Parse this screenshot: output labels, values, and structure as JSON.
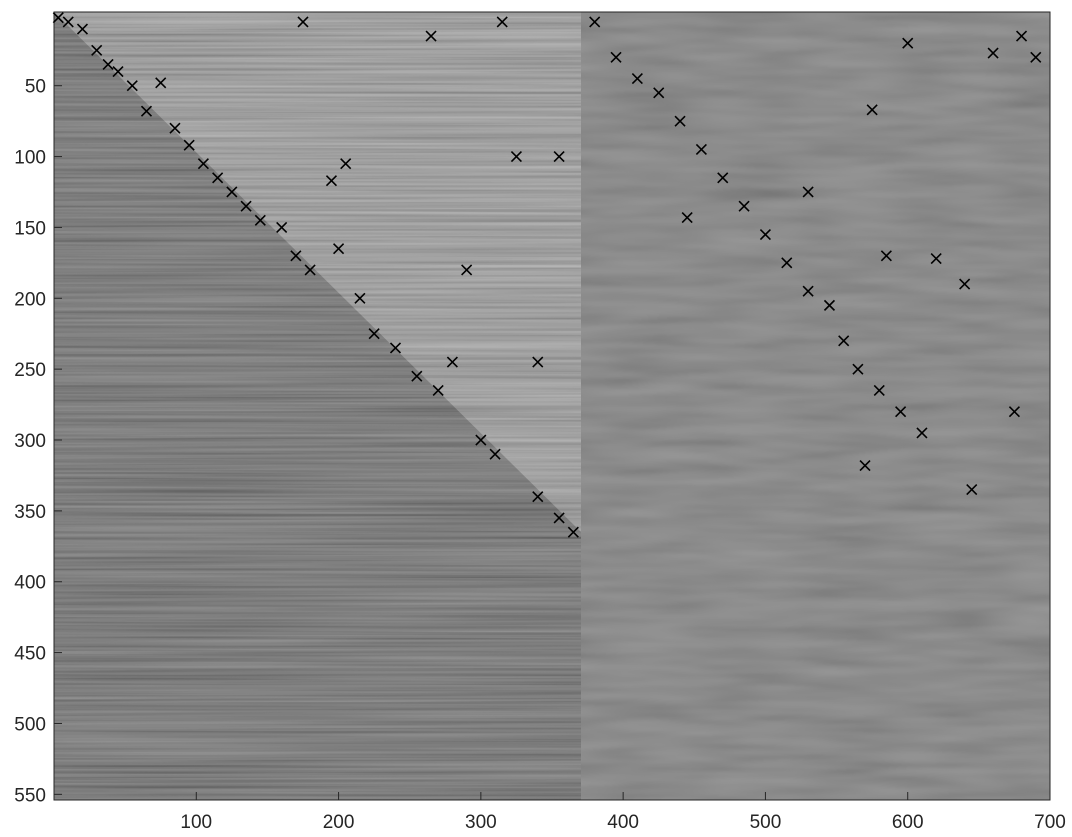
{
  "chart_data": {
    "type": "scatter",
    "xlim": [
      0,
      700
    ],
    "ylim": [
      -2,
      554
    ],
    "y_reversed": true,
    "xticks": [
      100,
      200,
      300,
      400,
      500,
      600,
      700
    ],
    "yticks": [
      50,
      100,
      150,
      200,
      250,
      300,
      350,
      400,
      450,
      500,
      550
    ],
    "series": [
      {
        "color": "#000000",
        "marker": "x",
        "x": [
          3,
          10,
          20,
          30,
          38,
          45,
          55,
          65,
          75,
          85,
          95,
          105,
          115,
          125,
          135,
          145,
          160,
          170,
          180,
          200,
          215,
          225,
          240,
          255,
          270,
          280,
          290,
          300,
          310,
          325,
          340,
          355,
          365,
          340,
          355,
          315,
          195,
          175,
          205,
          265,
          380,
          395,
          410,
          425,
          440,
          455,
          470,
          485,
          500,
          515,
          530,
          545,
          555,
          565,
          580,
          595,
          610,
          660,
          690,
          675,
          645,
          570,
          445,
          640,
          620,
          585,
          575,
          530,
          600,
          680
        ],
        "y": [
          2,
          5,
          10,
          25,
          35,
          40,
          50,
          68,
          48,
          80,
          92,
          105,
          115,
          125,
          135,
          145,
          150,
          170,
          180,
          165,
          200,
          225,
          235,
          255,
          265,
          245,
          180,
          300,
          310,
          100,
          340,
          355,
          365,
          245,
          100,
          5,
          117,
          5,
          105,
          15,
          5,
          30,
          45,
          55,
          75,
          95,
          115,
          135,
          155,
          175,
          195,
          205,
          230,
          250,
          265,
          280,
          295,
          27,
          30,
          280,
          335,
          318,
          143,
          190,
          172,
          170,
          67,
          125,
          20,
          15
        ]
      }
    ]
  }
}
